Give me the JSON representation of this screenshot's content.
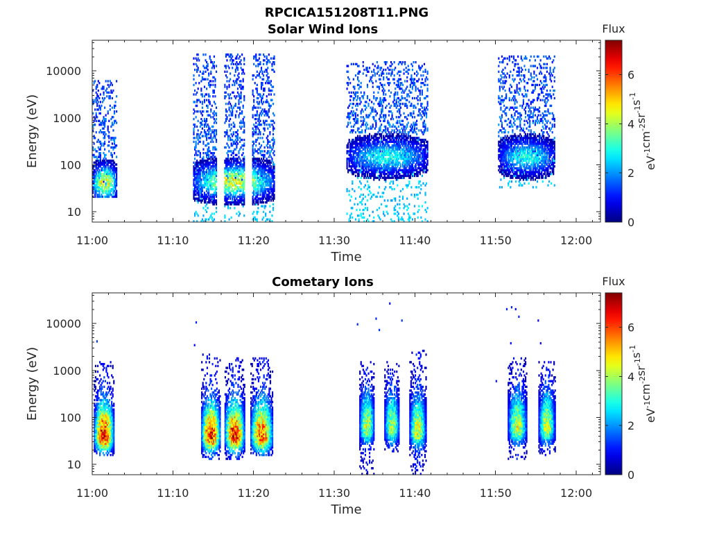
{
  "figure": {
    "suptitle": "RPCICA151208T11.PNG"
  },
  "chart_data": [
    {
      "type": "heatmap",
      "title": "Solar Wind Ions",
      "xlabel": "Time",
      "ylabel": "Energy (eV)",
      "x_tick_labels": [
        "11:00",
        "11:10",
        "11:20",
        "11:30",
        "11:40",
        "11:50",
        "12:00"
      ],
      "x_ticks_minutes": [
        0,
        10,
        20,
        30,
        40,
        50,
        60
      ],
      "xlim_minutes": [
        0,
        63
      ],
      "y_scale": "log",
      "ylim": [
        6,
        45000
      ],
      "y_ticks": [
        10,
        100,
        1000,
        10000
      ],
      "y_tick_labels": [
        "10",
        "100",
        "1000",
        "10000"
      ],
      "colorbar": {
        "label": "Flux",
        "unit_base": "eV",
        "unit_parts": [
          {
            "base": "eV",
            "exp": "-1"
          },
          {
            "base": "cm",
            "exp": "-2"
          },
          {
            "base": "sr",
            "exp": "-1"
          },
          {
            "base": "s",
            "exp": "-1"
          }
        ],
        "ticks": [
          0,
          2,
          4,
          6
        ],
        "tick_labels": [
          "0",
          "2",
          "4",
          "6"
        ],
        "range": [
          0,
          7.4
        ],
        "colormap": "jet"
      },
      "bursts": [
        {
          "t_start": 0.0,
          "t_end": 3.0,
          "e_core": 42,
          "core_flux": 4.8,
          "high_e_max": 6000,
          "high_density": 0.3,
          "low_e_min": 22
        },
        {
          "t_start": 12.5,
          "t_end": 22.5,
          "e_core": 45,
          "core_flux": 4.6,
          "high_e_max": 22000,
          "high_density": 0.35,
          "low_e_min": 6,
          "gaps": [
            [
              15.3,
              16.3
            ],
            [
              18.8,
              19.7
            ]
          ]
        },
        {
          "t_start": 31.5,
          "t_end": 41.5,
          "e_core": 150,
          "core_flux": 3.0,
          "high_e_max": 15000,
          "high_density": 0.3,
          "low_e_min": 6
        },
        {
          "t_start": 50.3,
          "t_end": 57.3,
          "e_core": 150,
          "core_flux": 3.0,
          "high_e_max": 20000,
          "high_density": 0.3,
          "low_e_min": 35
        }
      ]
    },
    {
      "type": "heatmap",
      "title": "Cometary Ions",
      "xlabel": "Time",
      "ylabel": "Energy (eV)",
      "x_tick_labels": [
        "11:00",
        "11:10",
        "11:20",
        "11:30",
        "11:40",
        "11:50",
        "12:00"
      ],
      "x_ticks_minutes": [
        0,
        10,
        20,
        30,
        40,
        50,
        60
      ],
      "xlim_minutes": [
        0,
        63
      ],
      "y_scale": "log",
      "ylim": [
        6,
        45000
      ],
      "y_ticks": [
        10,
        100,
        1000,
        10000
      ],
      "y_tick_labels": [
        "10",
        "100",
        "1000",
        "10000"
      ],
      "colorbar": {
        "label": "Flux",
        "unit_parts": [
          {
            "base": "eV",
            "exp": "-1"
          },
          {
            "base": "cm",
            "exp": "-2"
          },
          {
            "base": "sr",
            "exp": "-1"
          },
          {
            "base": "s",
            "exp": "-1"
          }
        ],
        "ticks": [
          0,
          2,
          4,
          6
        ],
        "tick_labels": [
          "0",
          "2",
          "4",
          "6"
        ],
        "range": [
          0,
          7.4
        ],
        "colormap": "jet"
      },
      "bursts": [
        {
          "t_start": 0.2,
          "t_end": 2.6,
          "e_core": 40,
          "core_flux": 6.4,
          "high_e_max": 1500,
          "low_e_min": 17
        },
        {
          "t_start": 13.5,
          "t_end": 15.8,
          "e_core": 40,
          "core_flux": 6.4,
          "high_e_max": 2000,
          "low_e_min": 14
        },
        {
          "t_start": 16.4,
          "t_end": 18.8,
          "e_core": 40,
          "core_flux": 6.5,
          "high_e_max": 1800,
          "low_e_min": 14
        },
        {
          "t_start": 19.6,
          "t_end": 22.3,
          "e_core": 40,
          "core_flux": 5.9,
          "high_e_max": 1700,
          "low_e_min": 17
        },
        {
          "t_start": 33.1,
          "t_end": 34.9,
          "e_core": 60,
          "core_flux": 4.3,
          "high_e_max": 1500,
          "low_e_min": 6
        },
        {
          "t_start": 36.2,
          "t_end": 38.0,
          "e_core": 60,
          "core_flux": 4.1,
          "high_e_max": 1400,
          "low_e_min": 20
        },
        {
          "t_start": 39.3,
          "t_end": 41.3,
          "e_core": 50,
          "core_flux": 4.5,
          "high_e_max": 2500,
          "low_e_min": 6
        },
        {
          "t_start": 51.5,
          "t_end": 53.8,
          "e_core": 60,
          "core_flux": 4.3,
          "high_e_max": 1700,
          "low_e_min": 14
        },
        {
          "t_start": 55.3,
          "t_end": 57.3,
          "e_core": 60,
          "core_flux": 4.3,
          "high_e_max": 1400,
          "low_e_min": 17
        }
      ],
      "sparse_high_points": [
        {
          "t": 0.5,
          "e": 4200
        },
        {
          "t": 12.6,
          "e": 3500
        },
        {
          "t": 12.8,
          "e": 11000
        },
        {
          "t": 32.8,
          "e": 10000
        },
        {
          "t": 35.1,
          "e": 13000
        },
        {
          "t": 35.5,
          "e": 7500
        },
        {
          "t": 36.8,
          "e": 26000
        },
        {
          "t": 38.3,
          "e": 12000
        },
        {
          "t": 51.3,
          "e": 20000
        },
        {
          "t": 51.9,
          "e": 22000
        },
        {
          "t": 52.4,
          "e": 20000
        },
        {
          "t": 52.8,
          "e": 14000
        },
        {
          "t": 51.8,
          "e": 4000
        },
        {
          "t": 55.2,
          "e": 12000
        },
        {
          "t": 55.5,
          "e": 4000
        },
        {
          "t": 50.0,
          "e": 600
        }
      ]
    }
  ]
}
